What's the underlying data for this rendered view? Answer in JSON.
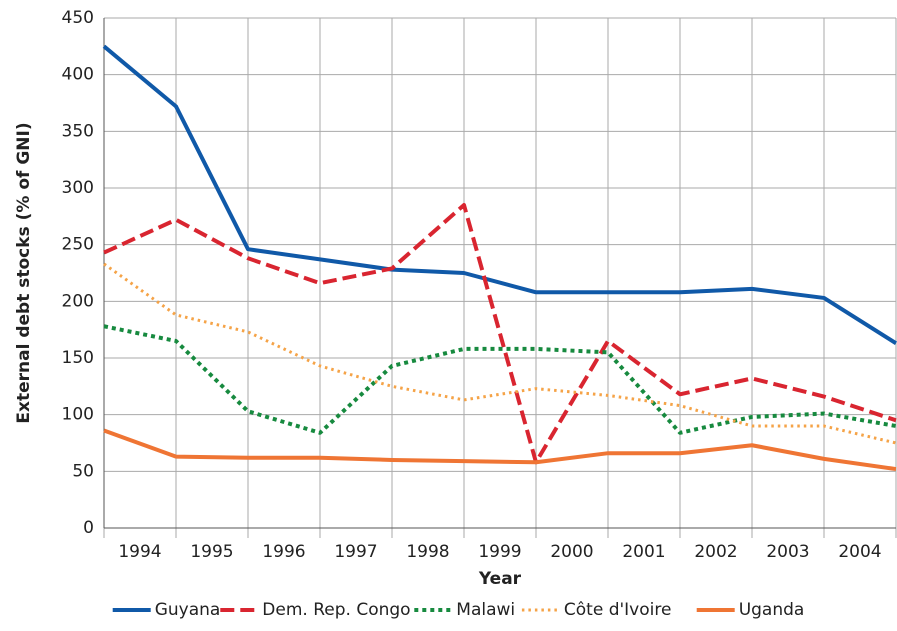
{
  "chart_data": {
    "type": "line",
    "categories": [
      "1994",
      "1995",
      "1996",
      "1997",
      "1998",
      "1999",
      "2000",
      "2001",
      "2002",
      "2003",
      "2004",
      null
    ],
    "xlabel": "Year",
    "ylabel": "External debt stocks (% of GNI)",
    "ylim": [
      0,
      450
    ],
    "yticks": [
      0,
      50,
      100,
      150,
      200,
      250,
      300,
      350,
      400,
      450
    ],
    "grid": true,
    "legend": "bottom",
    "series": [
      {
        "name": "Guyana",
        "color": "#1059a8",
        "style": "solid",
        "values": [
          425,
          372,
          246,
          237,
          228,
          225,
          208,
          208,
          208,
          211,
          203,
          163
        ]
      },
      {
        "name": "Dem. Rep. Congo",
        "color": "#d92530",
        "style": "dashed",
        "values": [
          243,
          272,
          238,
          216,
          229,
          285,
          58,
          165,
          118,
          132,
          116,
          95
        ]
      },
      {
        "name": "Malawi",
        "color": "#178a3f",
        "style": "dotted",
        "values": [
          178,
          165,
          103,
          84,
          143,
          158,
          158,
          155,
          84,
          98,
          101,
          90
        ]
      },
      {
        "name": "Côte d'Ivoire",
        "color": "#f5a347",
        "style": "finedotted",
        "values": [
          233,
          188,
          173,
          143,
          125,
          113,
          123,
          117,
          108,
          90,
          90,
          75
        ]
      },
      {
        "name": "Uganda",
        "color": "#ef7534",
        "style": "solid",
        "values": [
          86,
          63,
          62,
          62,
          60,
          59,
          58,
          66,
          66,
          73,
          61,
          52
        ]
      }
    ]
  }
}
